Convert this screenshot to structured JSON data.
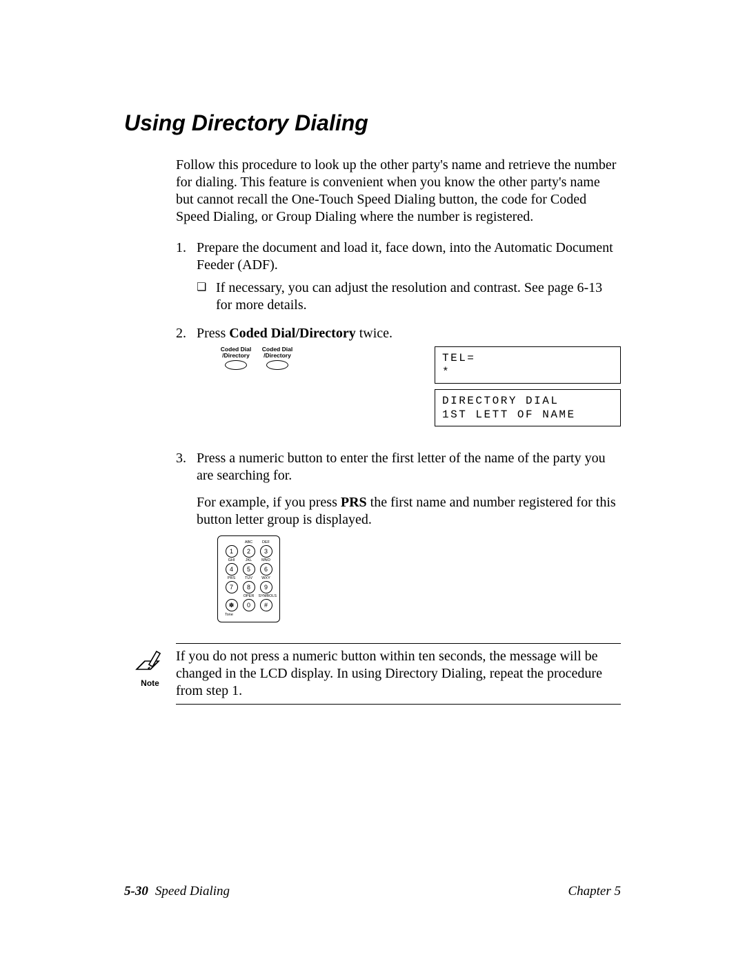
{
  "heading": "Using Directory Dialing",
  "intro": "Follow this procedure to look up the other party's name and retrieve the number for dialing. This feature is convenient when you know the other party's name but cannot recall the One-Touch Speed Dialing button, the code for Coded Speed Dialing, or Group Dialing where the number is registered.",
  "step1_num": "1.",
  "step1": "Prepare the document and load it, face down, into the Automatic Document Feeder (ADF).",
  "step1_sub_bullet": "❏",
  "step1_sub": "If necessary, you can adjust the resolution and contrast. See page 6-13 for more details.",
  "step2_num": "2.",
  "step2_pre": "Press ",
  "step2_bold": "Coded Dial/Directory",
  "step2_post": " twice.",
  "coded_label": "Coded Dial\n/Directory",
  "lcd1": "TEL=\n*",
  "lcd2": "DIRECTORY DIAL\n1ST LETT OF NAME",
  "step3_num": "3.",
  "step3a": "Press a numeric button to enter the first letter of the name of the party you are searching for.",
  "step3b_pre": "For example, if you press ",
  "step3b_bold": "PRS",
  "step3b_post": " the first name and number registered for this button letter group is displayed.",
  "keypad": {
    "rows": [
      [
        {
          "lbl": "",
          "d": "1"
        },
        {
          "lbl": "ABC",
          "d": "2"
        },
        {
          "lbl": "DEF",
          "d": "3"
        }
      ],
      [
        {
          "lbl": "GHI",
          "d": "4"
        },
        {
          "lbl": "JKL",
          "d": "5"
        },
        {
          "lbl": "MNO",
          "d": "6"
        }
      ],
      [
        {
          "lbl": "PRS",
          "d": "7"
        },
        {
          "lbl": "TUV",
          "d": "8"
        },
        {
          "lbl": "WXY",
          "d": "9"
        }
      ],
      [
        {
          "lbl": "",
          "d": "✽"
        },
        {
          "lbl": "OPER",
          "d": "0"
        },
        {
          "lbl": "SYMBOLS",
          "d": "#"
        }
      ]
    ],
    "tone": "Tone"
  },
  "note_label": "Note",
  "note_text": "If you do not press a numeric button within ten seconds, the message will be changed in the LCD display. In using Directory Dialing, repeat the procedure from step 1.",
  "footer_page": "5-30",
  "footer_section": "Speed Dialing",
  "footer_chapter": "Chapter 5"
}
